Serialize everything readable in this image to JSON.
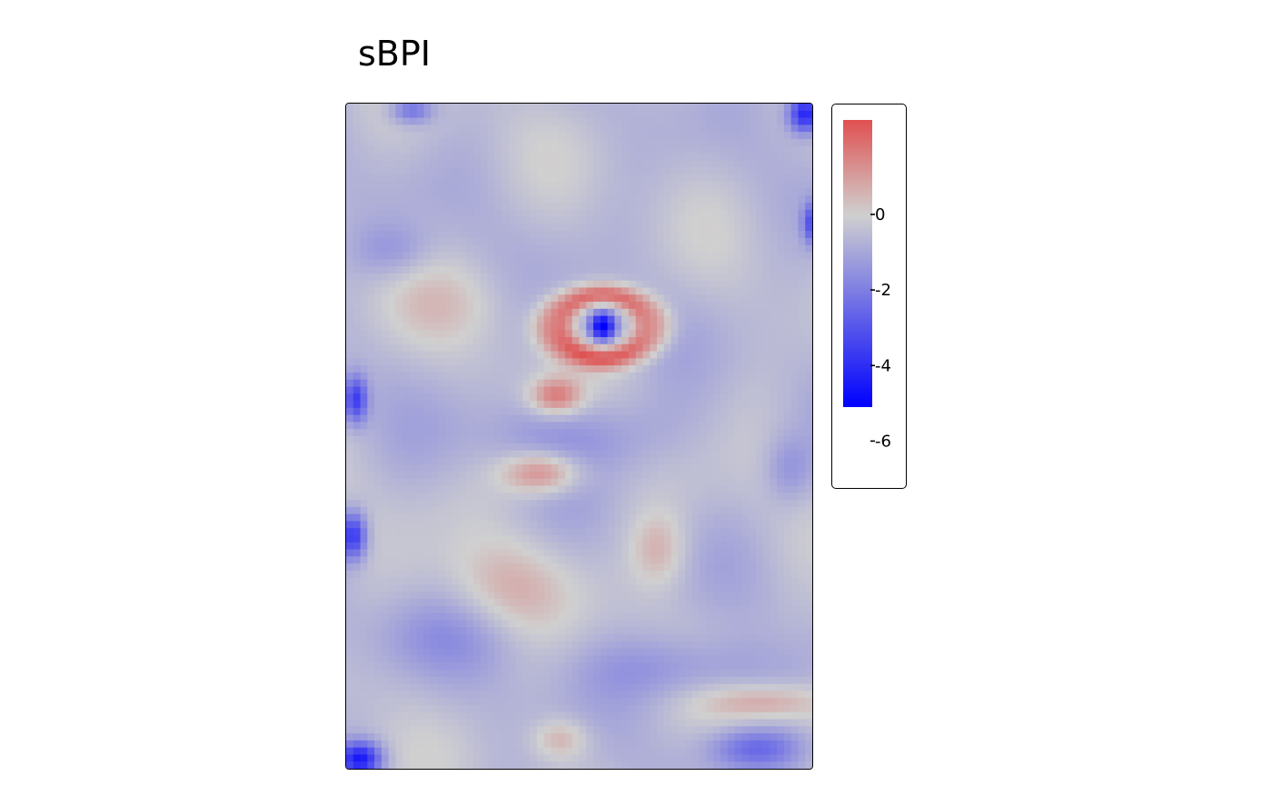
{
  "chart_data": {
    "type": "heatmap",
    "title": "sBPI",
    "variable": "sBPI",
    "grid": false,
    "color_scale": {
      "low_color": "#0000ff",
      "mid_color": "#d0d0d0",
      "high_color": "#e05050",
      "mid_value": 0,
      "bar_range": [
        -5.1,
        2.5
      ]
    },
    "legend": {
      "position": "right",
      "ticks": [
        {
          "value": 0,
          "label": "0"
        },
        {
          "value": -2,
          "label": "-2"
        },
        {
          "value": -4,
          "label": "-4"
        },
        {
          "value": -6,
          "label": "-6"
        }
      ]
    },
    "value_range": [
      -5.1,
      2.5
    ],
    "grid_size": {
      "cols": 66,
      "rows": 94
    },
    "features": [
      {
        "cx": 0.55,
        "cy": 0.335,
        "sx": 0.028,
        "sy": 0.022,
        "v": -5.0
      },
      {
        "cx": 0.55,
        "cy": 0.335,
        "sx": 0.24,
        "sy": 0.105,
        "v": 2.0,
        "ring": 0.45
      },
      {
        "cx": 0.45,
        "cy": 0.44,
        "sx": 0.055,
        "sy": 0.028,
        "v": 2.2
      },
      {
        "cx": 0.42,
        "cy": 0.555,
        "sx": 0.085,
        "sy": 0.032,
        "v": 2.3
      },
      {
        "cx": 0.34,
        "cy": 0.73,
        "sx": 0.13,
        "sy": 0.07,
        "v": 1.0
      },
      {
        "cx": 0.67,
        "cy": 0.67,
        "sx": 0.06,
        "sy": 0.055,
        "v": 1.1
      },
      {
        "cx": 0.46,
        "cy": 0.955,
        "sx": 0.06,
        "sy": 0.03,
        "v": 1.2
      },
      {
        "cx": 0.2,
        "cy": 0.3,
        "sx": 0.16,
        "sy": 0.06,
        "v": 0.5
      },
      {
        "cx": 0.9,
        "cy": 0.9,
        "sx": 0.13,
        "sy": 0.028,
        "v": 1.4
      },
      {
        "cx": 0.02,
        "cy": 0.445,
        "sx": 0.025,
        "sy": 0.035,
        "v": -3.0
      },
      {
        "cx": 0.015,
        "cy": 0.65,
        "sx": 0.028,
        "sy": 0.035,
        "v": -3.3
      },
      {
        "cx": 0.985,
        "cy": 0.015,
        "sx": 0.035,
        "sy": 0.028,
        "v": -4.0
      },
      {
        "cx": 0.03,
        "cy": 0.985,
        "sx": 0.045,
        "sy": 0.025,
        "v": -3.8
      },
      {
        "cx": 0.14,
        "cy": 0.01,
        "sx": 0.045,
        "sy": 0.02,
        "v": -2.0
      },
      {
        "cx": 1.0,
        "cy": 0.18,
        "sx": 0.02,
        "sy": 0.03,
        "v": -2.5
      },
      {
        "cx": 0.5,
        "cy": 0.5,
        "sx": 0.22,
        "sy": 0.06,
        "v": -0.9
      },
      {
        "cx": 0.22,
        "cy": 0.8,
        "sx": 0.18,
        "sy": 0.06,
        "v": -0.7
      },
      {
        "cx": 0.72,
        "cy": 0.85,
        "sx": 0.2,
        "sy": 0.05,
        "v": -1.1
      },
      {
        "cx": 0.88,
        "cy": 0.97,
        "sx": 0.1,
        "sy": 0.03,
        "v": -1.8
      },
      {
        "cx": 0.1,
        "cy": 0.22,
        "sx": 0.08,
        "sy": 0.04,
        "v": -0.8
      },
      {
        "cx": 0.95,
        "cy": 0.55,
        "sx": 0.05,
        "sy": 0.05,
        "v": -1.0
      }
    ]
  }
}
